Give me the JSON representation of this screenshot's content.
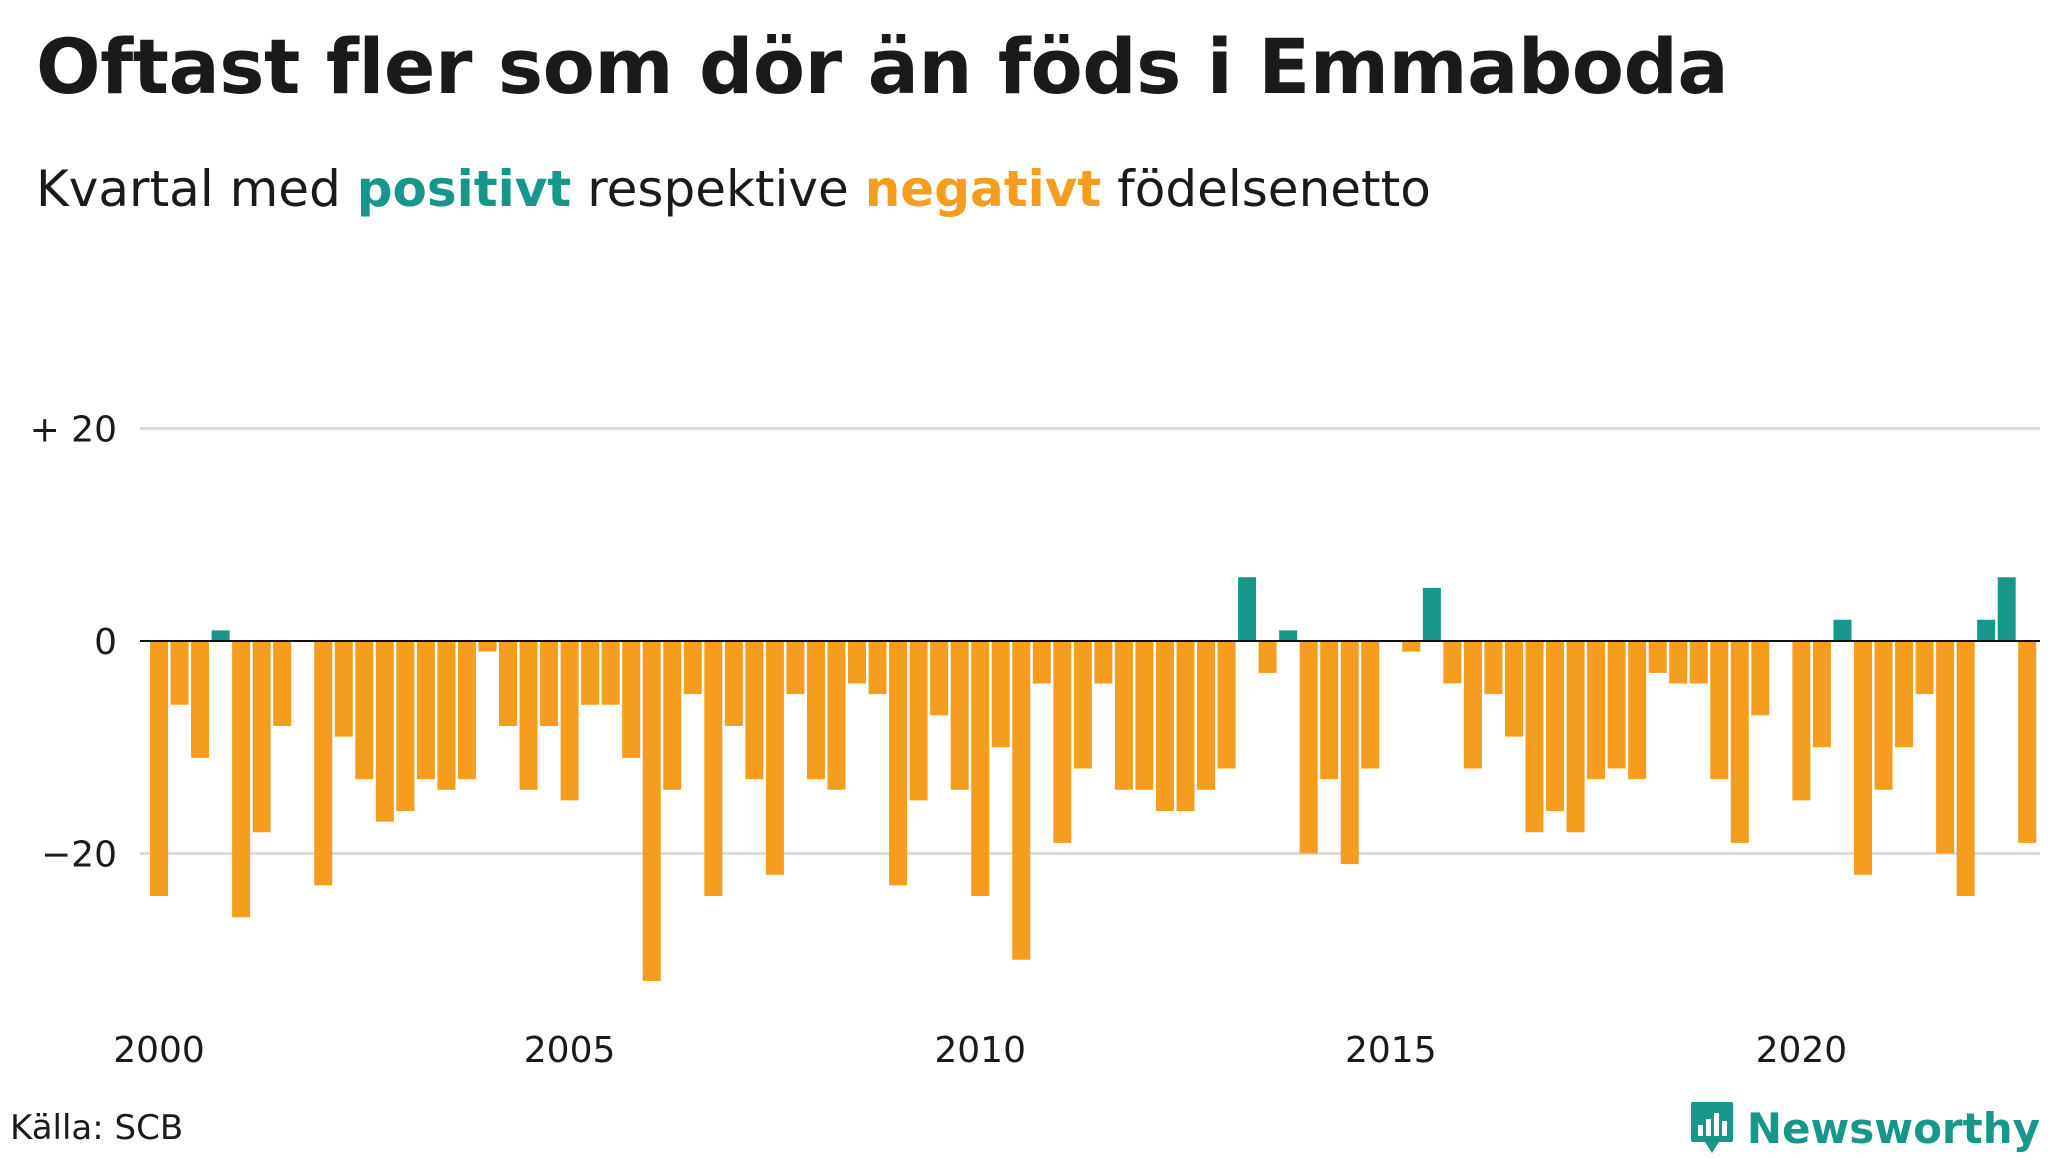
{
  "header": {
    "title": "Oftast fler som dör än föds i Emmaboda",
    "subtitle_prefix": "Kvartal med",
    "subtitle_positive": "positivt",
    "subtitle_middle": "respektive",
    "subtitle_negative": "negativt",
    "subtitle_suffix": "födelsenetto"
  },
  "footer": {
    "source": "Källa: SCB",
    "brand": "Newsworthy",
    "brand_icon": "bar-chart-speech-bubble-icon"
  },
  "colors": {
    "positive": "#17978a",
    "negative": "#f49d1e",
    "grid": "#dcdcdc",
    "zero": "#111111",
    "text": "#1a1a1a"
  },
  "chart_data": {
    "type": "bar",
    "title": "Oftast fler som dör än föds i Emmaboda",
    "subtitle": "Kvartal med positivt respektive negativt födelsenetto",
    "x_start": "2000 Q1",
    "x_tick_labels": [
      "2000",
      "2005",
      "2010",
      "2015",
      "2020"
    ],
    "y_tick_labels": [
      "+ 20",
      "0",
      "−20"
    ],
    "y_ticks": [
      20,
      0,
      -20
    ],
    "ylim": [
      -33,
      20
    ],
    "grid": true,
    "values": [
      -24,
      -6,
      -11,
      1,
      -26,
      -18,
      -8,
      0,
      -23,
      -9,
      -13,
      -17,
      -16,
      -13,
      -14,
      -13,
      -1,
      -8,
      -14,
      -8,
      -15,
      -6,
      -6,
      -11,
      -32,
      -14,
      -5,
      -24,
      -8,
      -13,
      -22,
      -5,
      -13,
      -14,
      -4,
      -5,
      -23,
      -15,
      -7,
      -14,
      -24,
      -10,
      -30,
      -4,
      -19,
      -12,
      -4,
      -14,
      -14,
      -16,
      -16,
      -14,
      -12,
      6,
      -3,
      1,
      -20,
      -13,
      -21,
      -12,
      0,
      -1,
      5,
      -4,
      -12,
      -5,
      -9,
      -18,
      -16,
      -18,
      -13,
      -12,
      -13,
      -3,
      -4,
      -4,
      -13,
      -19,
      -7,
      0,
      -15,
      -10,
      2,
      -22,
      -14,
      -10,
      -5,
      -20,
      -24,
      2,
      6,
      -19
    ]
  }
}
